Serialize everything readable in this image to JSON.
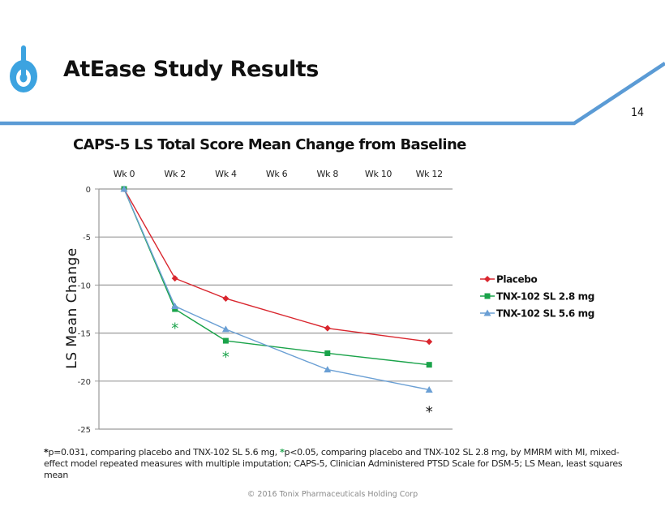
{
  "header": {
    "title": "AtEase Study Results",
    "page_number": "14",
    "logo_icon": "power-button-logo-icon",
    "accent_color": "#5b9bd5",
    "logo_color": "#3ca3e0"
  },
  "chart_data": {
    "type": "line",
    "title": "CAPS-5 LS Total Score Mean Change from Baseline",
    "xlabel": "",
    "ylabel": "LS Mean Change",
    "x_categories": [
      "Wk 0",
      "Wk 2",
      "Wk 4",
      "Wk 6",
      "Wk 8",
      "Wk 10",
      "Wk 12"
    ],
    "x_axis_position": "top",
    "ylim": [
      -25,
      0
    ],
    "y_ticks": [
      0,
      -5,
      -10,
      -15,
      -20,
      -25
    ],
    "y_tick_labels": [
      "0",
      "-5",
      "-10",
      "-15",
      "-20",
      "-25"
    ],
    "grid": true,
    "legend_position": "right",
    "series": [
      {
        "name": "Placebo",
        "color": "#d9262e",
        "marker": "diamond",
        "x": [
          "Wk 0",
          "Wk 2",
          "Wk 4",
          "Wk 8",
          "Wk 12"
        ],
        "values": [
          0,
          -9.3,
          -11.4,
          -14.5,
          -15.9
        ]
      },
      {
        "name": "TNX-102 SL 2.8 mg",
        "color": "#1aa34a",
        "marker": "square",
        "x": [
          "Wk 0",
          "Wk 2",
          "Wk 4",
          "Wk 8",
          "Wk 12"
        ],
        "values": [
          0,
          -12.5,
          -15.8,
          -17.1,
          -18.3
        ]
      },
      {
        "name": "TNX-102 SL 5.6 mg",
        "color": "#6a9fd4",
        "marker": "triangle",
        "x": [
          "Wk 0",
          "Wk 2",
          "Wk 4",
          "Wk 8",
          "Wk 12"
        ],
        "values": [
          0,
          -12.2,
          -14.6,
          -18.8,
          -20.9
        ]
      }
    ],
    "annotations": [
      {
        "text": "*",
        "x": "Wk 2",
        "y": -14.3,
        "color": "#1aa34a"
      },
      {
        "text": "*",
        "x": "Wk 4",
        "y": -17.3,
        "color": "#1aa34a"
      },
      {
        "text": "*",
        "x": "Wk 12",
        "y": -23.0,
        "color": "#111111"
      }
    ]
  },
  "footnote": {
    "star1": "*",
    "part1": "p=0.031, comparing placebo and TNX-102  SL 5.6 mg, ",
    "star2": "*",
    "part2": "p<0.05, comparing placebo and TNX-102 SL 2.8 mg, by MMRM with MI, mixed-effect model repeated measures with multiple imputation; CAPS-5, Clinician Administered PTSD Scale for DSM-5; LS Mean, least squares mean"
  },
  "copyright": "© 2016 Tonix Pharmaceuticals Holding Corp"
}
